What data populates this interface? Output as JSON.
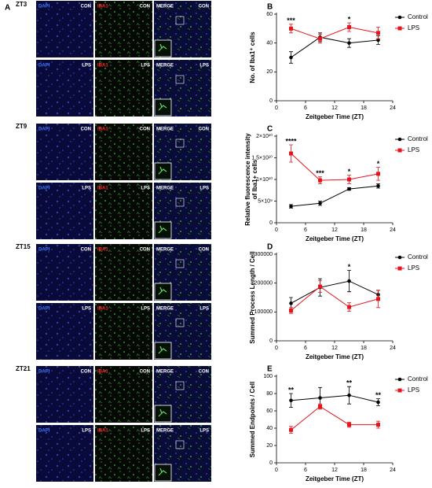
{
  "panel_a": {
    "label": "A",
    "channels": [
      "DAPI",
      "IBA1",
      "MERGE"
    ],
    "groups": [
      {
        "time": "ZT3",
        "rows": [
          "CON",
          "LPS"
        ]
      },
      {
        "time": "ZT9",
        "rows": [
          "CON",
          "LPS"
        ]
      },
      {
        "time": "ZT15",
        "rows": [
          "CON",
          "LPS"
        ]
      },
      {
        "time": "ZT21",
        "rows": [
          "CON",
          "LPS"
        ]
      }
    ]
  },
  "chart_data": [
    {
      "type": "line",
      "label": "B",
      "ylabel": "No. of Iba1⁺ cells",
      "xlabel": "Zeitgeber Time (ZT)",
      "x": [
        3,
        9,
        15,
        21
      ],
      "xlim": [
        0,
        24
      ],
      "xticks": [
        0,
        6,
        12,
        18,
        24
      ],
      "ylim": [
        0,
        60
      ],
      "yticks": [
        0,
        20,
        40,
        60
      ],
      "series": [
        {
          "name": "Control",
          "color": "#000000",
          "marker": "circle",
          "values": [
            30,
            44,
            40,
            42
          ],
          "errors": [
            4,
            3,
            3,
            3
          ]
        },
        {
          "name": "LPS",
          "color": "#e8141b",
          "marker": "square",
          "values": [
            50,
            43,
            51,
            47
          ],
          "errors": [
            3,
            3,
            3,
            4
          ]
        }
      ],
      "annotations": [
        {
          "x": 3,
          "text": "***"
        },
        {
          "x": 15,
          "text": "*"
        }
      ]
    },
    {
      "type": "line",
      "label": "C",
      "ylabel": [
        "Relative fluorescence intensity",
        "of Iba1+ cells"
      ],
      "xlabel": "Zeitgeber Time (ZT)",
      "x": [
        3,
        9,
        15,
        21
      ],
      "xlim": [
        0,
        24
      ],
      "xticks": [
        0,
        6,
        12,
        18,
        24
      ],
      "ylim": [
        0,
        20000000000
      ],
      "yticks": [
        0,
        {
          "value": 5000000000,
          "label": "5×10⁹"
        },
        {
          "value": 10000000000,
          "label": "1×10¹⁰"
        },
        {
          "value": 15000000000,
          "label": "1.5×10¹⁰"
        },
        {
          "value": 20000000000,
          "label": "2×10¹⁰"
        }
      ],
      "series": [
        {
          "name": "Control",
          "color": "#000000",
          "marker": "circle",
          "values": [
            3800000000,
            4500000000,
            7800000000,
            8500000000
          ],
          "errors": [
            400000000,
            500000000,
            300000000,
            500000000
          ]
        },
        {
          "name": "LPS",
          "color": "#e8141b",
          "marker": "square",
          "values": [
            16000000000,
            9800000000,
            10000000000,
            11300000000
          ],
          "errors": [
            2000000000,
            800000000,
            1000000000,
            1500000000
          ]
        }
      ],
      "annotations": [
        {
          "x": 3,
          "text": "****"
        },
        {
          "x": 9,
          "text": "***"
        },
        {
          "x": 15,
          "text": "*"
        },
        {
          "x": 21,
          "text": "*"
        }
      ]
    },
    {
      "type": "line",
      "label": "D",
      "ylabel": "Summed Process Length / Cell",
      "xlabel": "Zeitgeber Time (ZT)",
      "x": [
        3,
        9,
        15,
        21
      ],
      "xlim": [
        0,
        24
      ],
      "xticks": [
        0,
        6,
        12,
        18,
        24
      ],
      "ylim": [
        0,
        300000
      ],
      "yticks": [
        0,
        100000,
        200000,
        300000
      ],
      "series": [
        {
          "name": "Control",
          "color": "#000000",
          "marker": "circle",
          "values": [
            130000,
            185000,
            207000,
            160000
          ],
          "errors": [
            20000,
            30000,
            37000,
            15000
          ]
        },
        {
          "name": "LPS",
          "color": "#e8141b",
          "marker": "square",
          "values": [
            105000,
            188000,
            117000,
            145000
          ],
          "errors": [
            10000,
            20000,
            15000,
            30000
          ]
        }
      ],
      "annotations": [
        {
          "x": 15,
          "text": "*"
        }
      ]
    },
    {
      "type": "line",
      "label": "E",
      "ylabel": "Summed Endpoints / Cell",
      "xlabel": "Zeitgeber Time (ZT)",
      "x": [
        3,
        9,
        15,
        21
      ],
      "xlim": [
        0,
        24
      ],
      "xticks": [
        0,
        6,
        12,
        18,
        24
      ],
      "ylim": [
        0,
        100
      ],
      "yticks": [
        0,
        20,
        40,
        60,
        80,
        100
      ],
      "series": [
        {
          "name": "Control",
          "color": "#000000",
          "marker": "circle",
          "values": [
            72,
            75,
            78,
            70
          ],
          "errors": [
            8,
            12,
            10,
            4
          ]
        },
        {
          "name": "LPS",
          "color": "#e8141b",
          "marker": "square",
          "values": [
            38,
            65,
            44,
            44
          ],
          "errors": [
            4,
            3,
            3,
            4
          ]
        }
      ],
      "annotations": [
        {
          "x": 3,
          "text": "**"
        },
        {
          "x": 15,
          "text": "**"
        },
        {
          "x": 21,
          "text": "**"
        }
      ]
    }
  ]
}
